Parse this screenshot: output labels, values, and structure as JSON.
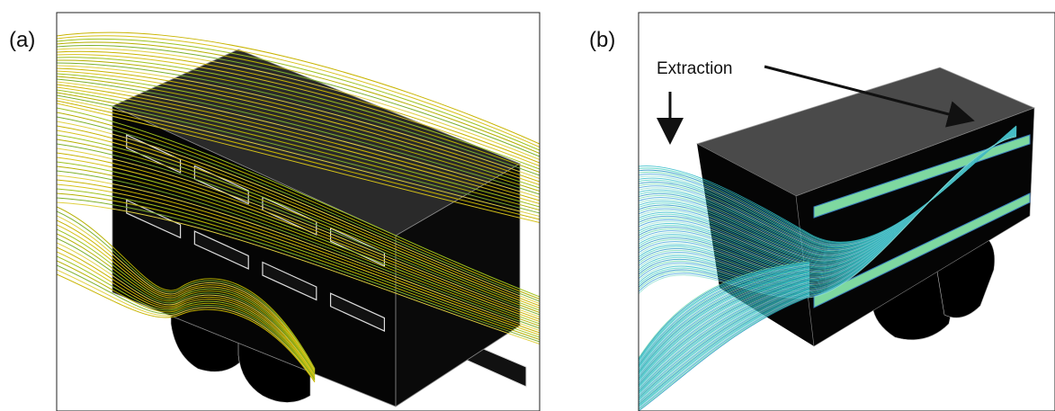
{
  "panels": [
    {
      "label": "(a)"
    },
    {
      "label": "(b)",
      "annotation": "Extraction"
    }
  ]
}
